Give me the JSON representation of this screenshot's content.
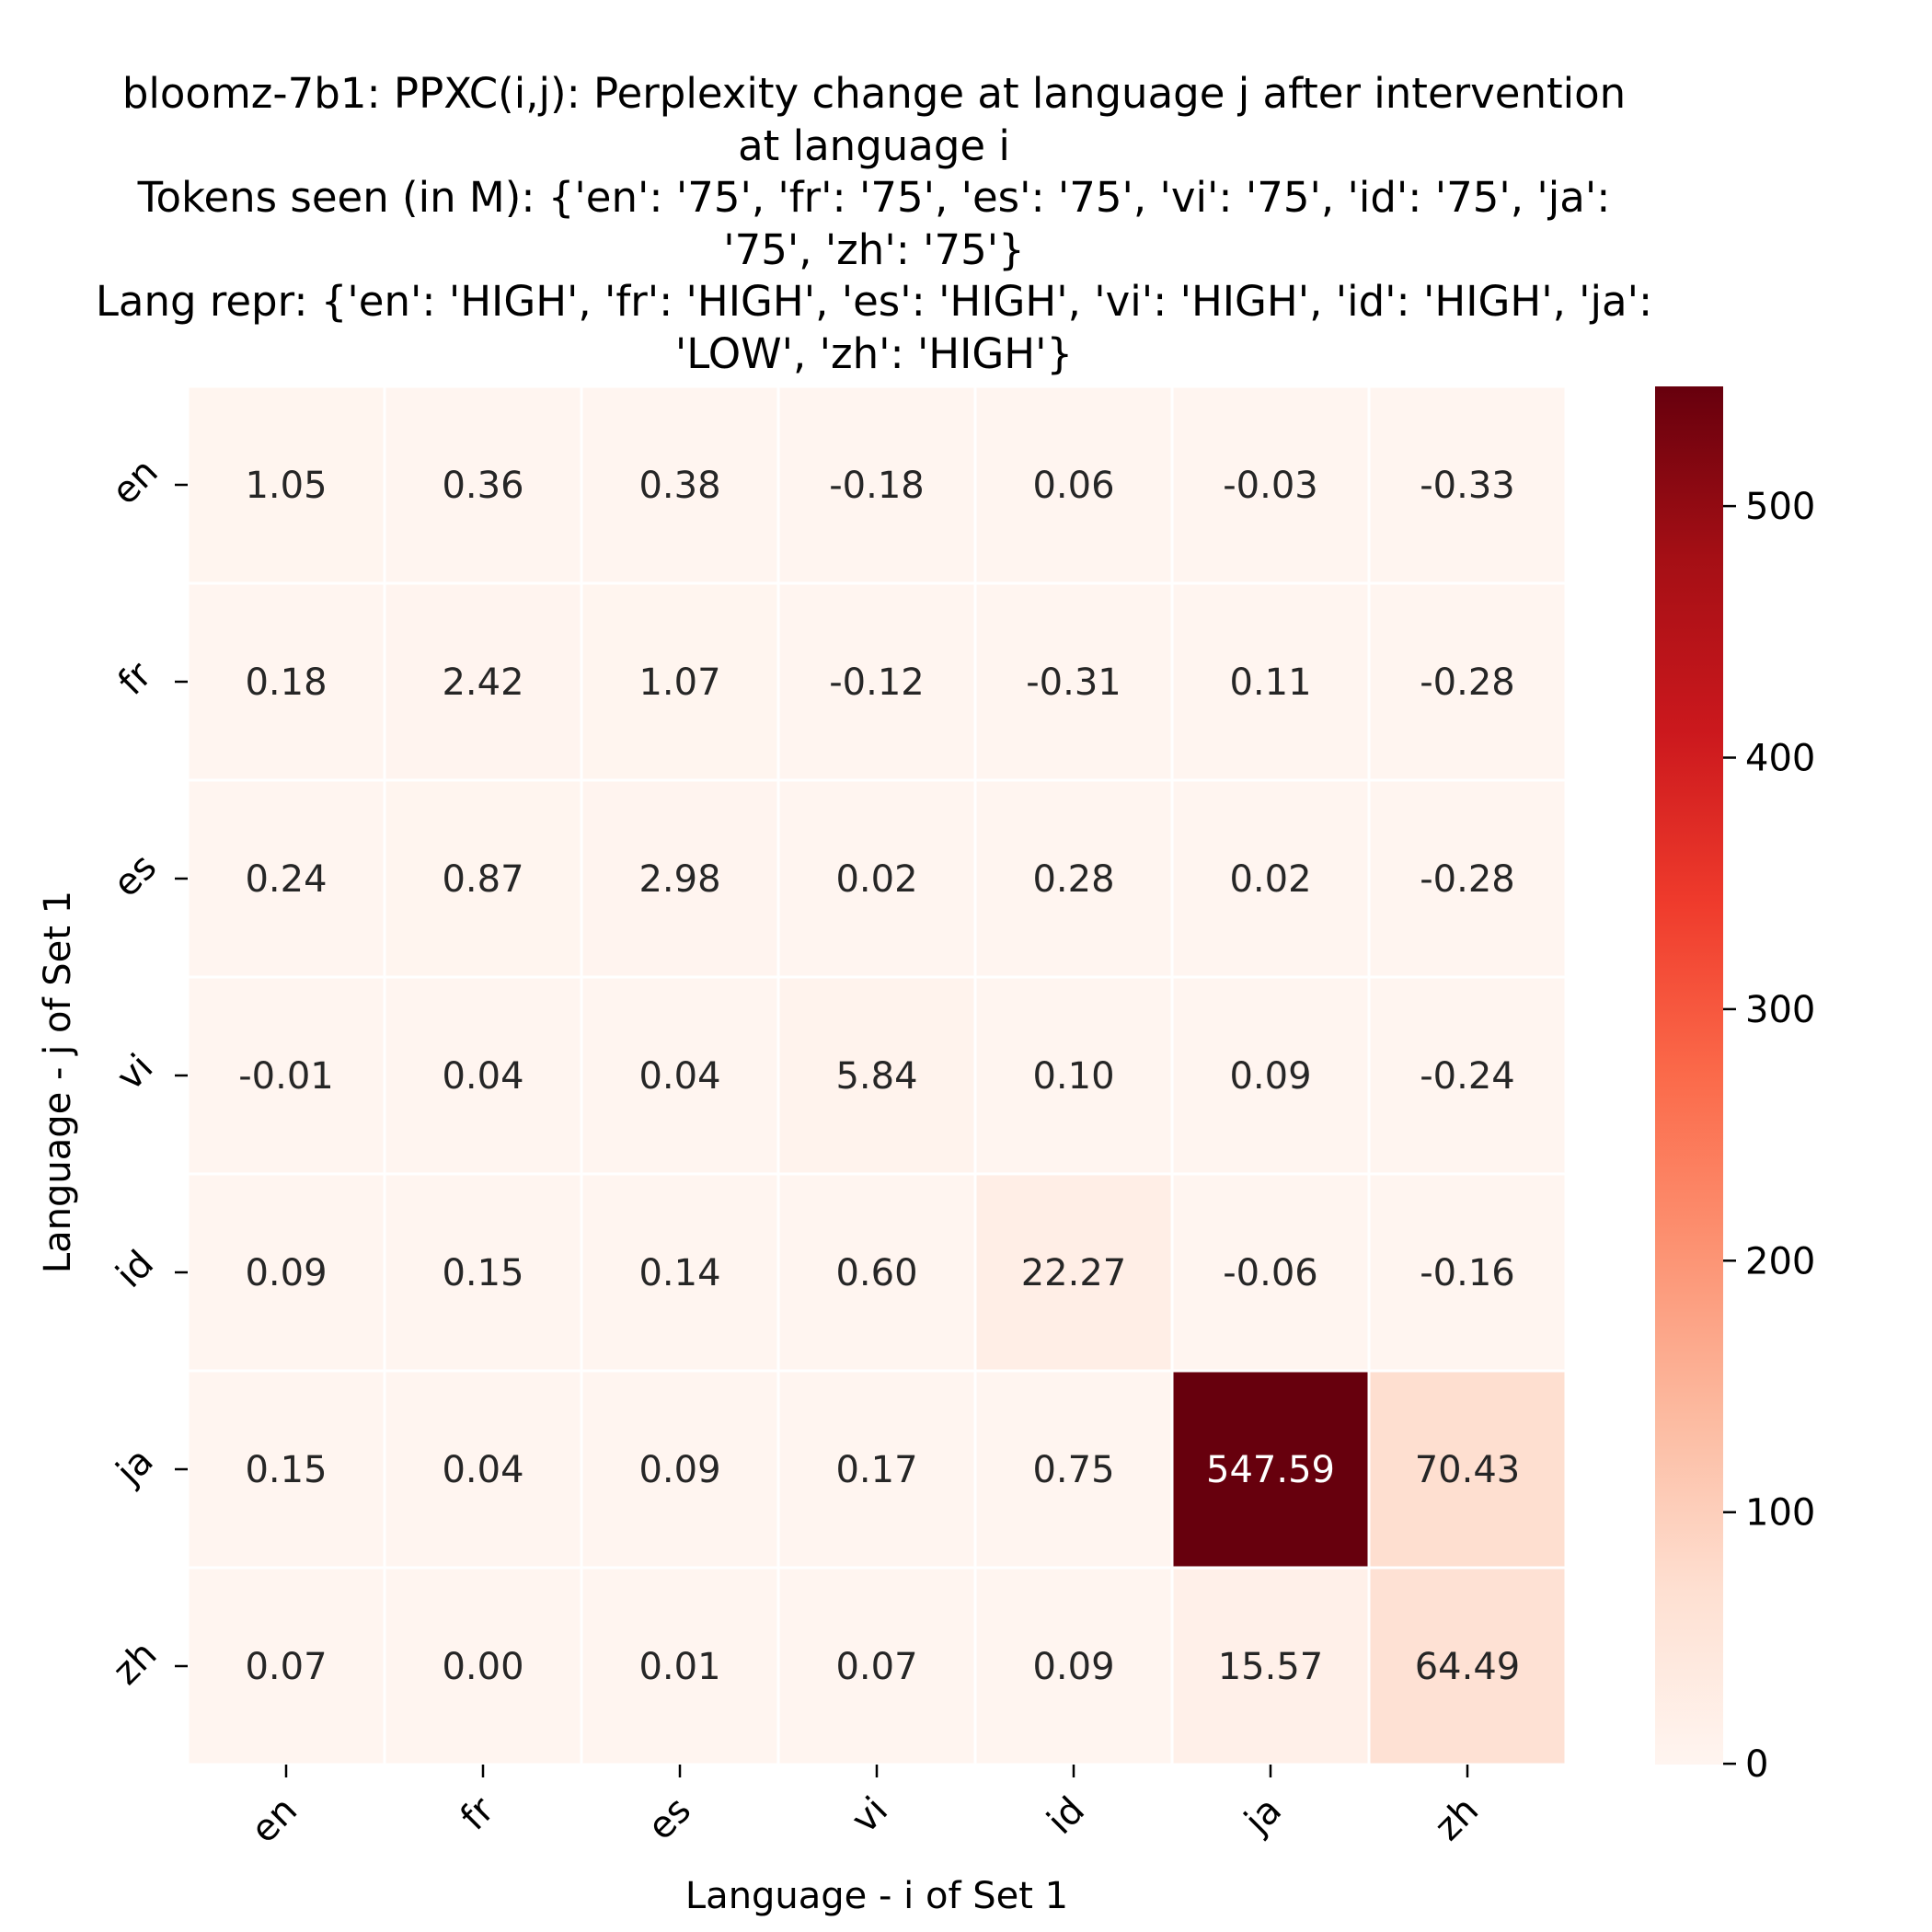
{
  "chart_data": {
    "type": "heatmap",
    "title_lines": [
      "bloomz-7b1: PPXC(i,j): Perplexity change at language j after intervention",
      "at language i",
      "Tokens seen (in M): {'en': '75', 'fr': '75', 'es': '75', 'vi': '75', 'id': '75', 'ja':",
      "'75', 'zh': '75'}",
      "Lang repr: {'en': 'HIGH', 'fr': 'HIGH', 'es': 'HIGH', 'vi': 'HIGH', 'id': 'HIGH', 'ja':",
      "'LOW', 'zh': 'HIGH'}"
    ],
    "xlabel": "Language - i of Set 1",
    "ylabel": "Language - j of Set 1",
    "x_categories": [
      "en",
      "fr",
      "es",
      "vi",
      "id",
      "ja",
      "zh"
    ],
    "y_categories": [
      "en",
      "fr",
      "es",
      "vi",
      "id",
      "ja",
      "zh"
    ],
    "values": [
      [
        1.05,
        0.36,
        0.38,
        -0.18,
        0.06,
        -0.03,
        -0.33
      ],
      [
        0.18,
        2.42,
        1.07,
        -0.12,
        -0.31,
        0.11,
        -0.28
      ],
      [
        0.24,
        0.87,
        2.98,
        0.02,
        0.28,
        0.02,
        -0.28
      ],
      [
        -0.01,
        0.04,
        0.04,
        5.84,
        0.1,
        0.09,
        -0.24
      ],
      [
        0.09,
        0.15,
        0.14,
        0.6,
        22.27,
        -0.06,
        -0.16
      ],
      [
        0.15,
        0.04,
        0.09,
        0.17,
        0.75,
        547.59,
        70.43
      ],
      [
        0.07,
        0.0,
        0.01,
        0.07,
        0.09,
        15.57,
        64.49
      ]
    ],
    "value_format_decimals": 2,
    "colormap": "Reds",
    "colorbar": {
      "vmin": -0.33,
      "vmax": 547.59,
      "ticks": [
        0,
        100,
        200,
        300,
        400,
        500
      ]
    },
    "cell_separator_color": "#ffffff",
    "text_color_dark": "#262626",
    "text_color_light": "#ffffff"
  }
}
